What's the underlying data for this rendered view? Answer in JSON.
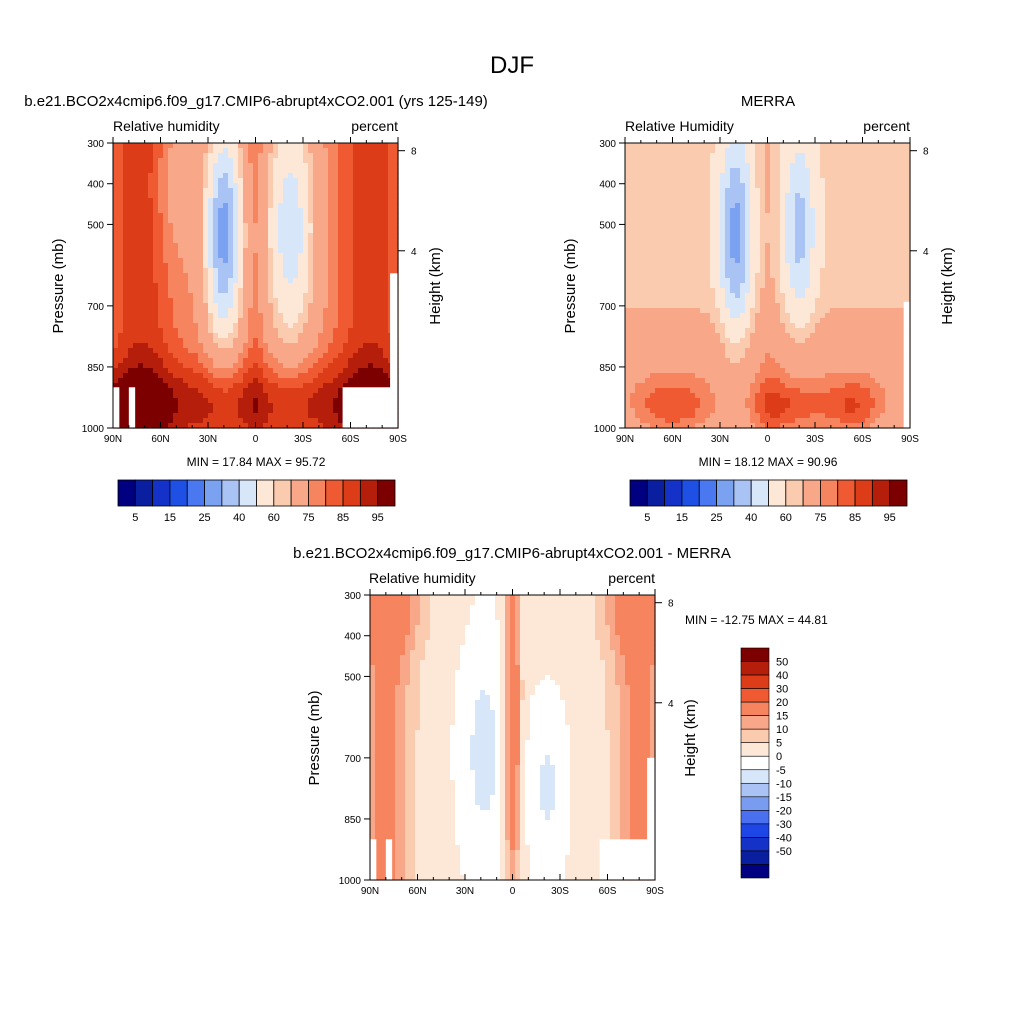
{
  "figure": {
    "title": "DJF"
  },
  "colors": {
    "rh_palette": [
      "#000080",
      "#0a1ea0",
      "#1432c8",
      "#1e50e6",
      "#4a78f0",
      "#7aa2f0",
      "#aac3f5",
      "#d8e6fa",
      "#fde8d8",
      "#fbcbb0",
      "#f8a888",
      "#f6845e",
      "#f05a32",
      "#dc3c18",
      "#b41e0a",
      "#7d0000"
    ],
    "diff_palette": [
      "#000080",
      "#0a1ea0",
      "#1432c8",
      "#1e46e6",
      "#4a70f0",
      "#7a9cf0",
      "#aac3f5",
      "#d8e6fa",
      "#ffffff",
      "#fde8d8",
      "#fbcbb0",
      "#f8a888",
      "#f6845e",
      "#f05a32",
      "#dc3c18",
      "#b41e0a",
      "#7d0000"
    ]
  },
  "chart_data": [
    {
      "type": "heatmap",
      "title": "b.e21.BCO2x4cmip6.f09_g17.CMIP6-abrupt4xCO2.001 (yrs 125-149)",
      "left_string": "Relative humidity",
      "right_string": "percent",
      "ylabel": "Pressure (mb)",
      "ylabel_right": "Height (km)",
      "x_ticks": [
        "90N",
        "60N",
        "30N",
        "0",
        "30S",
        "60S",
        "90S"
      ],
      "y_ticks": [
        "300",
        "400",
        "500",
        "700",
        "850",
        "1000"
      ],
      "y_ticks_right": [
        "8",
        "4"
      ],
      "ylim": [
        1000,
        300
      ],
      "stats": "MIN =  17.84  MAX =  95.72",
      "colorbar_labels": [
        "5",
        "15",
        "25",
        "40",
        "60",
        "75",
        "85",
        "95"
      ],
      "min": 17.84,
      "max": 95.72
    },
    {
      "type": "heatmap",
      "title": "MERRA",
      "left_string": "Relative Humidity",
      "right_string": "percent",
      "ylabel": "Pressure (mb)",
      "ylabel_right": "Height (km)",
      "x_ticks": [
        "90N",
        "60N",
        "30N",
        "0",
        "30S",
        "60S",
        "90S"
      ],
      "y_ticks": [
        "300",
        "400",
        "500",
        "700",
        "850",
        "1000"
      ],
      "y_ticks_right": [
        "8",
        "4"
      ],
      "ylim": [
        1000,
        300
      ],
      "stats": "MIN =  18.12  MAX =  90.96",
      "colorbar_labels": [
        "5",
        "15",
        "25",
        "40",
        "60",
        "75",
        "85",
        "95"
      ],
      "min": 18.12,
      "max": 90.96
    },
    {
      "type": "heatmap",
      "title": "b.e21.BCO2x4cmip6.f09_g17.CMIP6-abrupt4xCO2.001 - MERRA",
      "left_string": "Relative humidity",
      "right_string": "percent",
      "ylabel": "Pressure (mb)",
      "ylabel_right": "Height (km)",
      "x_ticks": [
        "90N",
        "60N",
        "30N",
        "0",
        "30S",
        "60S",
        "90S"
      ],
      "y_ticks": [
        "300",
        "400",
        "500",
        "700",
        "850",
        "1000"
      ],
      "y_ticks_right": [
        "8",
        "4"
      ],
      "ylim": [
        1000,
        300
      ],
      "stats": "MIN = -12.75  MAX =  44.81",
      "colorbar_labels": [
        "50",
        "40",
        "30",
        "20",
        "15",
        "10",
        "5",
        "0",
        "-5",
        "-10",
        "-15",
        "-20",
        "-30",
        "-40",
        "-50"
      ],
      "min": -12.75,
      "max": 44.81
    }
  ]
}
